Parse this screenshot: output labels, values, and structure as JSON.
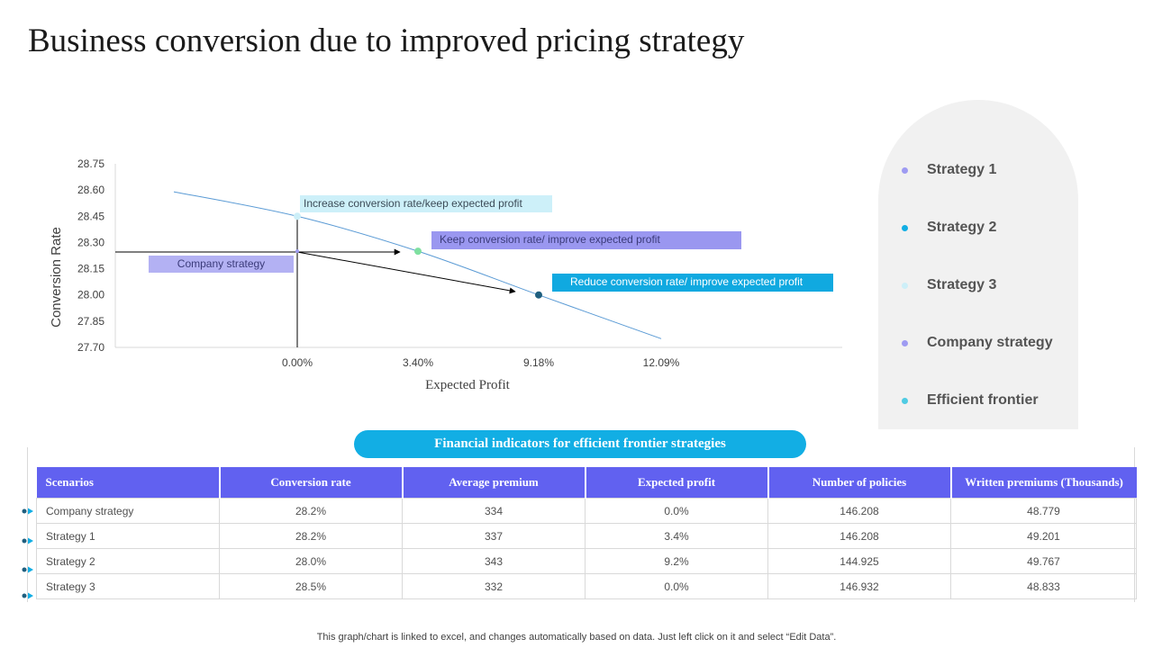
{
  "page": {
    "title": "Business conversion due to improved pricing strategy",
    "footer": "This graph/chart is linked to excel, and changes automatically based on data. Just left click on it and select “Edit Data”."
  },
  "chart_data": {
    "type": "line",
    "xlabel": "Expected Profit",
    "ylabel": "Conversion Rate",
    "yticks": [
      "28.75",
      "28.60",
      "28.45",
      "28.30",
      "28.15",
      "28.00",
      "27.85",
      "27.70"
    ],
    "ylim": [
      27.7,
      28.75
    ],
    "xticks": [
      "0.00%",
      "3.40%",
      "9.18%",
      "12.09%"
    ],
    "series": [
      {
        "name": "Efficient frontier",
        "color": "#5b9bd5",
        "points": [
          {
            "x": -3.0,
            "y": 28.59
          },
          {
            "x": 0.0,
            "y": 28.45
          },
          {
            "x": 3.4,
            "y": 28.25
          },
          {
            "x": 9.18,
            "y": 28.0
          },
          {
            "x": 12.09,
            "y": 27.75
          }
        ]
      }
    ],
    "markers": [
      {
        "name": "Strategy 3",
        "x": 0.0,
        "y": 28.45,
        "color": "#cdeff8"
      },
      {
        "name": "Strategy 1",
        "x": 3.4,
        "y": 28.25,
        "color": "#7fe0a0"
      },
      {
        "name": "Strategy 2",
        "x": 9.18,
        "y": 28.0,
        "color": "#1f5f7f"
      },
      {
        "name": "Company strategy",
        "x": 0.0,
        "y": 28.25,
        "color": "#9e9bf2"
      }
    ],
    "annotations": [
      {
        "id": "increase",
        "text": "Increase conversion  rate/keep expected profit"
      },
      {
        "id": "keep",
        "text": "Keep conversion  rate/ improve  expected profit"
      },
      {
        "id": "reduce",
        "text": "Reduce conversion  rate/ improve  expected profit"
      },
      {
        "id": "company",
        "text": "Company strategy"
      }
    ]
  },
  "legend": {
    "items": [
      {
        "label": "Strategy 1",
        "color": "#9e9bf2"
      },
      {
        "label": "Strategy 2",
        "color": "#12aee4"
      },
      {
        "label": "Strategy 3",
        "color": "#cdeff8"
      },
      {
        "label": "Company strategy",
        "color": "#9e9bf2"
      },
      {
        "label": "Efficient frontier",
        "color": "#4fcbe3"
      }
    ]
  },
  "table": {
    "caption": "Financial indicators for efficient frontier strategies",
    "headers": [
      "Scenarios",
      "Conversion rate",
      "Average premium",
      "Expected profit",
      "Number of policies",
      "Written premiums (Thousands)"
    ],
    "rows": [
      [
        "Company strategy",
        "28.2%",
        "334",
        "0.0%",
        "146.208",
        "48.779"
      ],
      [
        "Strategy 1",
        "28.2%",
        "337",
        "3.4%",
        "146.208",
        "49.201"
      ],
      [
        "Strategy 2",
        "28.0%",
        "343",
        "9.2%",
        "144.925",
        "49.767"
      ],
      [
        "Strategy 3",
        "28.5%",
        "332",
        "0.0%",
        "146.932",
        "48.833"
      ]
    ]
  }
}
